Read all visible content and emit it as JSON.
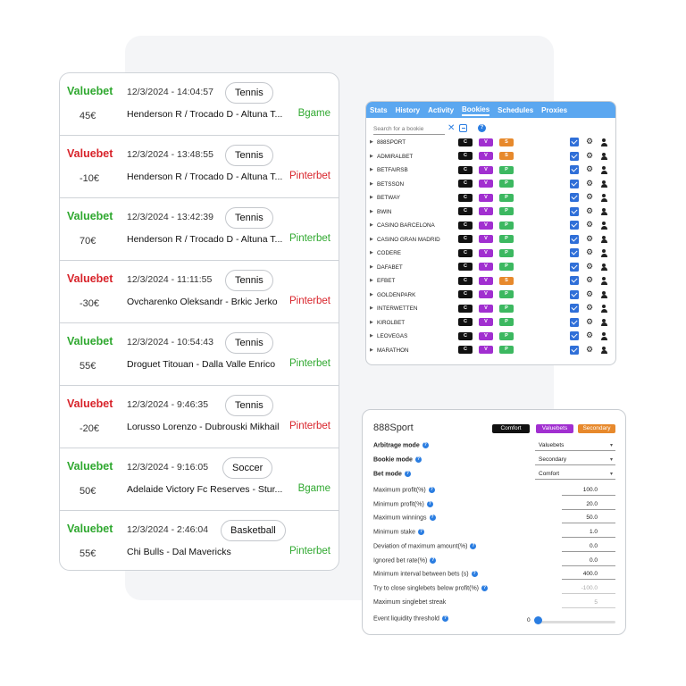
{
  "bets": [
    {
      "kind": "Valuebet",
      "kind_color": "pos",
      "date": "12/3/2024 - 14:04:57",
      "sport": "Tennis",
      "match": "Henderson R / Trocado D - Altuna T...",
      "amount": "45€",
      "bookie": "Bgame",
      "bookie_color": "green"
    },
    {
      "kind": "Valuebet",
      "kind_color": "neg",
      "date": "12/3/2024 - 13:48:55",
      "sport": "Tennis",
      "match": "Henderson R / Trocado D - Altuna T...",
      "amount": "-10€",
      "bookie": "Pinterbet",
      "bookie_color": "red"
    },
    {
      "kind": "Valuebet",
      "kind_color": "pos",
      "date": "12/3/2024 - 13:42:39",
      "sport": "Tennis",
      "match": "Henderson R / Trocado D - Altuna T...",
      "amount": "70€",
      "bookie": "Pinterbet",
      "bookie_color": "green"
    },
    {
      "kind": "Valuebet",
      "kind_color": "neg",
      "date": "12/3/2024 - 11:11:55",
      "sport": "Tennis",
      "match": "Ovcharenko Oleksandr - Brkic Jerko",
      "amount": "-30€",
      "bookie": "Pinterbet",
      "bookie_color": "red"
    },
    {
      "kind": "Valuebet",
      "kind_color": "pos",
      "date": "12/3/2024 - 10:54:43",
      "sport": "Tennis",
      "match": "Droguet Titouan - Dalla Valle Enrico",
      "amount": "55€",
      "bookie": "Pinterbet",
      "bookie_color": "green"
    },
    {
      "kind": "Valuebet",
      "kind_color": "neg",
      "date": "12/3/2024 - 9:46:35",
      "sport": "Tennis",
      "match": "Lorusso Lorenzo - Dubrouski Mikhail",
      "amount": "-20€",
      "bookie": "Pinterbet",
      "bookie_color": "red"
    },
    {
      "kind": "Valuebet",
      "kind_color": "pos",
      "date": "12/3/2024 - 9:16:05",
      "sport": "Soccer",
      "match": "Adelaide Victory Fc Reserves - Stur...",
      "amount": "50€",
      "bookie": "Bgame",
      "bookie_color": "green"
    },
    {
      "kind": "Valuebet",
      "kind_color": "pos",
      "date": "12/3/2024 - 2:46:04",
      "sport": "Basketball",
      "match": "Chi Bulls - Dal Mavericks",
      "amount": "55€",
      "bookie": "Pinterbet",
      "bookie_color": "green"
    }
  ],
  "bookies_window": {
    "tabs": [
      "Stats",
      "History",
      "Activity",
      "Bookies",
      "Schedules",
      "Proxies"
    ],
    "active_tab": "Bookies",
    "search_placeholder": "Search for a bookie",
    "clear_symbol": "✕",
    "help_symbol": "?",
    "chip_labels": {
      "c": "C",
      "v": "V",
      "p": "P",
      "s": "S"
    },
    "rows": [
      {
        "name": "888SPORT",
        "third": "s"
      },
      {
        "name": "ADMIRALBET",
        "third": "s"
      },
      {
        "name": "BETFAIRSB",
        "third": "p"
      },
      {
        "name": "BETSSON",
        "third": "p"
      },
      {
        "name": "BETWAY",
        "third": "p"
      },
      {
        "name": "BWIN",
        "third": "p"
      },
      {
        "name": "CASINO BARCELONA",
        "third": "p"
      },
      {
        "name": "CASINO GRAN MADRID",
        "third": "p"
      },
      {
        "name": "CODERE",
        "third": "p"
      },
      {
        "name": "DAFABET",
        "third": "p"
      },
      {
        "name": "EFBET",
        "third": "s"
      },
      {
        "name": "GOLDENPARK",
        "third": "p"
      },
      {
        "name": "INTERWETTEN",
        "third": "p"
      },
      {
        "name": "KIROLBET",
        "third": "p"
      },
      {
        "name": "LEOVEGAS",
        "third": "p"
      },
      {
        "name": "MARATHON",
        "third": "p"
      }
    ]
  },
  "settings": {
    "title": "888Sport",
    "pills": {
      "comfort": "Comfort",
      "valuebets": "Valuebets",
      "secondary": "Secondary"
    },
    "selects": [
      {
        "label": "Arbitrage mode",
        "value": "Valuebets"
      },
      {
        "label": "Bookie mode",
        "value": "Secondary"
      },
      {
        "label": "Bet mode",
        "value": "Comfort"
      }
    ],
    "fields": [
      {
        "label": "Maximum profit(%)",
        "value": "100.0",
        "help": true,
        "disabled": false
      },
      {
        "label": "Minimum profit(%)",
        "value": "20.0",
        "help": true,
        "disabled": false
      },
      {
        "label": "Maximum winnings",
        "value": "50.0",
        "help": true,
        "disabled": false
      },
      {
        "label": "Minimum stake",
        "value": "1.0",
        "help": true,
        "disabled": false
      },
      {
        "label": "Deviation of maximum amount(%)",
        "value": "0.0",
        "help": true,
        "disabled": false
      },
      {
        "label": "Ignored bet rate(%)",
        "value": "0.0",
        "help": true,
        "disabled": false
      },
      {
        "label": "Minimum interval between bets (s)",
        "value": "400.0",
        "help": true,
        "disabled": false
      },
      {
        "label": "Try to close singlebets below profit(%)",
        "value": "-100.0",
        "help": true,
        "disabled": true
      },
      {
        "label": "Maximum singlebet streak",
        "value": "5",
        "help": false,
        "disabled": true
      }
    ],
    "liquidity": {
      "label": "Event liquidity threshold",
      "value": "0",
      "fraction": 0
    }
  }
}
